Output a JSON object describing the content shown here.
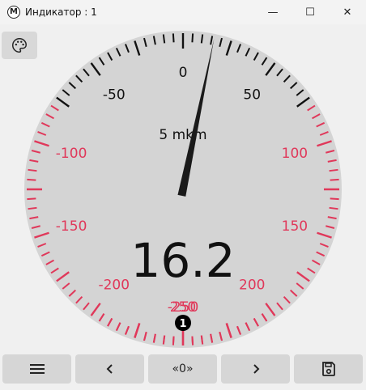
{
  "window": {
    "title": "Индикатор : 1",
    "app_icon_letter": "M",
    "controls": {
      "minimize": "—",
      "maximize": "☐",
      "close": "✕"
    }
  },
  "gauge": {
    "unit": "5 mkm",
    "value": "16.2",
    "needle_value": 16.2,
    "badge": "1",
    "scale_min": -300,
    "scale_max": 300,
    "minor_step": 5,
    "major_step": 25,
    "warning_limit": 75,
    "colors": {
      "dial_face": "#d4d4d4",
      "normal_tick": "#111111",
      "warning": "#e0385a",
      "needle": "#1a1a1a"
    },
    "labels": [
      {
        "value": -250,
        "text": "-250"
      },
      {
        "value": -200,
        "text": "-200"
      },
      {
        "value": -150,
        "text": "-150"
      },
      {
        "value": -100,
        "text": "-100"
      },
      {
        "value": -50,
        "text": "-50"
      },
      {
        "value": 0,
        "text": "0"
      },
      {
        "value": 50,
        "text": "50"
      },
      {
        "value": 100,
        "text": "100"
      },
      {
        "value": 150,
        "text": "150"
      },
      {
        "value": 200,
        "text": "200"
      },
      {
        "value": 250,
        "text": "250"
      }
    ]
  },
  "toolbar": {
    "menu_icon": "menu-icon",
    "prev_label": "<",
    "zero_label": "«0»",
    "next_label": ">",
    "save_icon": "save-icon"
  }
}
